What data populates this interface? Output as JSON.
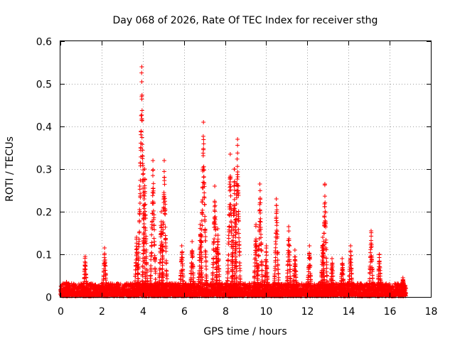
{
  "chart_data": {
    "type": "scatter",
    "title": "Day 068 of 2026, Rate Of TEC Index for receiver sthg",
    "xlabel": "GPS time / hours",
    "ylabel": "ROTI / TECUs",
    "xlim": [
      0,
      18
    ],
    "ylim": [
      0,
      0.6
    ],
    "x_ticks": [
      0,
      2,
      4,
      6,
      8,
      10,
      12,
      14,
      16,
      18
    ],
    "y_ticks": [
      0,
      0.1,
      0.2,
      0.3,
      0.4,
      0.5,
      0.6
    ],
    "x_tick_labels": [
      "0",
      "2",
      "4",
      "6",
      "8",
      "10",
      "12",
      "14",
      "16",
      "18"
    ],
    "y_tick_labels": [
      "0",
      "0.1",
      "0.2",
      "0.3",
      "0.4",
      "0.5",
      "0.6"
    ],
    "grid": true,
    "marker": "+",
    "color": "#ff0000",
    "series": [
      {
        "name": "ROTI",
        "note": "Dense baseline of ROTI samples between 0.00 and 0.03 TECU/min from 0 to 16.8 h, with the listed peak passes",
        "baseline": {
          "x_range": [
            0.0,
            16.8
          ],
          "y_range": [
            0.0,
            0.03
          ]
        },
        "peaks": [
          {
            "center": 0.3,
            "peak": 0.035
          },
          {
            "center": 1.2,
            "peak": 0.095
          },
          {
            "center": 2.15,
            "peak": 0.115
          },
          {
            "center": 3.7,
            "peak": 0.14
          },
          {
            "center": 3.95,
            "peak": 0.54
          },
          {
            "center": 4.1,
            "peak": 0.3
          },
          {
            "center": 4.5,
            "peak": 0.32
          },
          {
            "center": 4.9,
            "peak": 0.2
          },
          {
            "center": 5.05,
            "peak": 0.32
          },
          {
            "center": 5.9,
            "peak": 0.12
          },
          {
            "center": 6.4,
            "peak": 0.13
          },
          {
            "center": 6.8,
            "peak": 0.17
          },
          {
            "center": 6.95,
            "peak": 0.41
          },
          {
            "center": 7.5,
            "peak": 0.26
          },
          {
            "center": 7.65,
            "peak": 0.16
          },
          {
            "center": 8.25,
            "peak": 0.335
          },
          {
            "center": 8.45,
            "peak": 0.3
          },
          {
            "center": 8.6,
            "peak": 0.37
          },
          {
            "center": 9.5,
            "peak": 0.17
          },
          {
            "center": 9.7,
            "peak": 0.265
          },
          {
            "center": 10.0,
            "peak": 0.12
          },
          {
            "center": 10.5,
            "peak": 0.23
          },
          {
            "center": 11.1,
            "peak": 0.165
          },
          {
            "center": 11.4,
            "peak": 0.11
          },
          {
            "center": 12.1,
            "peak": 0.12
          },
          {
            "center": 12.75,
            "peak": 0.14
          },
          {
            "center": 12.85,
            "peak": 0.265
          },
          {
            "center": 13.2,
            "peak": 0.09
          },
          {
            "center": 13.7,
            "peak": 0.09
          },
          {
            "center": 14.1,
            "peak": 0.12
          },
          {
            "center": 15.1,
            "peak": 0.155
          },
          {
            "center": 15.5,
            "peak": 0.1
          },
          {
            "center": 16.65,
            "peak": 0.045
          }
        ]
      }
    ]
  }
}
